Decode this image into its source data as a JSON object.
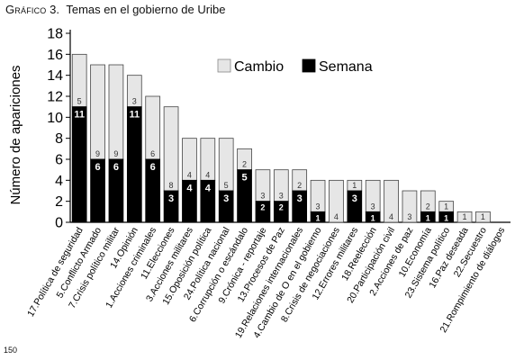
{
  "figure": {
    "label": "Gráfico",
    "number": "3.",
    "caption": "Temas en el gobierno de Uribe"
  },
  "page_number": "150",
  "chart_data": {
    "type": "bar",
    "stacked": true,
    "ylabel": "Número de apariciones",
    "ylim": [
      0,
      18
    ],
    "yticks": [
      0,
      2,
      4,
      6,
      8,
      10,
      12,
      14,
      16,
      18
    ],
    "legend_position": "top-right",
    "categories": [
      "17.Política de seguridad",
      "5.Conflicto Armado",
      "7.Crisis político militar",
      "14.Opinión",
      "1.Acciones criminales",
      "11.Elecciones",
      "3.Acciones militares",
      "15.Oposición política",
      "24.Política nacional",
      "6.Corrupción o escándalo",
      "9.Crónica - reportaje",
      "13.Procesos de Paz",
      "19.Relaciones internacionales",
      "4.Cambio de O en el gobierno",
      "8.Crisis de negociaciones",
      "12.Errores militares",
      "18.Reelección",
      "20.Participación civil",
      "2.Acciones de paz",
      "10.Economía",
      "23.Sistema político",
      "16.Paz deseada",
      "22.Secuestro",
      "21.Rompimiento de diálogos"
    ],
    "series": [
      {
        "name": "Semana",
        "color": "#000000",
        "label_color": "#ffffff",
        "values": [
          11,
          6,
          6,
          11,
          6,
          3,
          4,
          4,
          3,
          5,
          2,
          2,
          3,
          1,
          0,
          3,
          1,
          0,
          0,
          1,
          1,
          0,
          0,
          0
        ]
      },
      {
        "name": "Cambio",
        "color": "#e6e6e6",
        "label_color": "#333333",
        "values": [
          5,
          9,
          9,
          3,
          6,
          8,
          4,
          4,
          5,
          2,
          3,
          3,
          2,
          3,
          4,
          1,
          3,
          4,
          3,
          2,
          1,
          1,
          1,
          0
        ]
      }
    ],
    "legend": [
      "Cambio",
      "Semana"
    ]
  }
}
